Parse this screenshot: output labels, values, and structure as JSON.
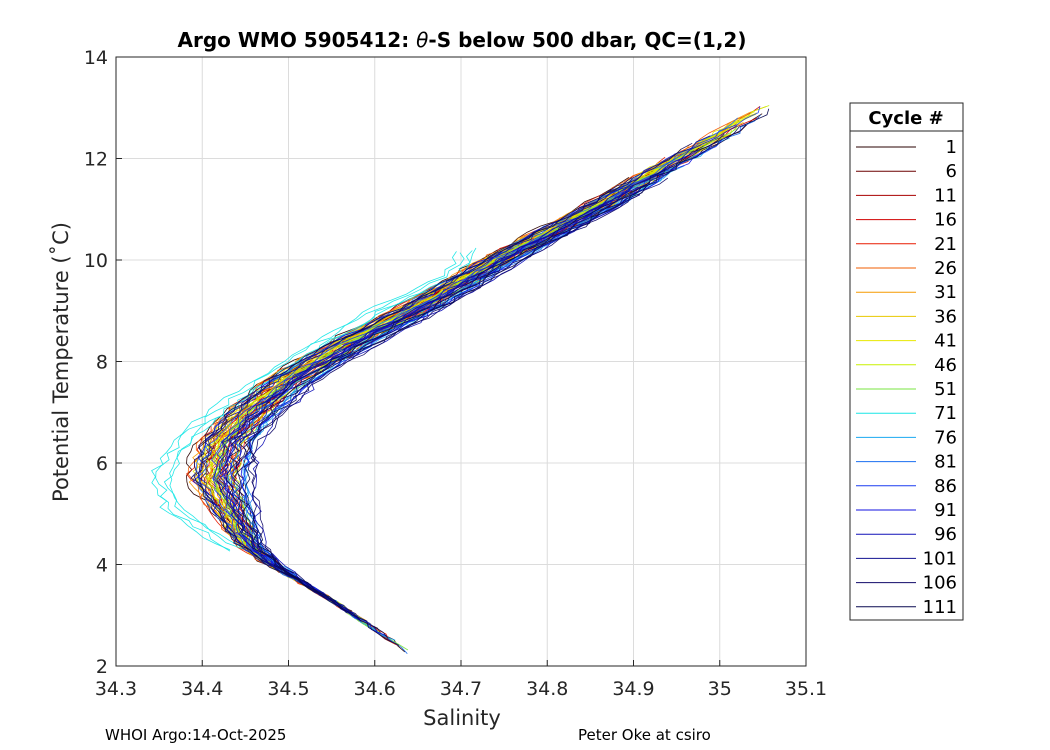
{
  "chart_data": {
    "type": "line",
    "title_prefix": "Argo WMO 5905412: ",
    "title_symbol": "θ",
    "title_suffix": "-S below 500 dbar,  QC=(1,2)",
    "xlabel": "Salinity",
    "ylabel": "Potential Temperature (˚C)",
    "xlim": [
      34.3,
      35.1
    ],
    "ylim": [
      2,
      14
    ],
    "xticks": [
      "34.3",
      "34.4",
      "34.5",
      "34.6",
      "34.7",
      "34.8",
      "34.9",
      "35",
      "35.1"
    ],
    "yticks": [
      "2",
      "4",
      "6",
      "8",
      "10",
      "12",
      "14"
    ],
    "grid": true,
    "legend_title": "Cycle #",
    "legend_position": "outside-right",
    "series": [
      {
        "name": "1",
        "color": "#2a0000"
      },
      {
        "name": "6",
        "color": "#6b0000"
      },
      {
        "name": "11",
        "color": "#a80000"
      },
      {
        "name": "16",
        "color": "#d10000"
      },
      {
        "name": "21",
        "color": "#e81a00"
      },
      {
        "name": "26",
        "color": "#f25c00"
      },
      {
        "name": "31",
        "color": "#f59a00"
      },
      {
        "name": "36",
        "color": "#e8c800"
      },
      {
        "name": "41",
        "color": "#e8e800"
      },
      {
        "name": "46",
        "color": "#c8f000"
      },
      {
        "name": "51",
        "color": "#7ae640"
      },
      {
        "name": "71",
        "color": "#19e6e6"
      },
      {
        "name": "76",
        "color": "#1aa8f0"
      },
      {
        "name": "81",
        "color": "#1a6ef0"
      },
      {
        "name": "86",
        "color": "#1a3cf0"
      },
      {
        "name": "91",
        "color": "#1010e0"
      },
      {
        "name": "96",
        "color": "#1010b8"
      },
      {
        "name": "101",
        "color": "#101090"
      },
      {
        "name": "106",
        "color": "#100a6a"
      },
      {
        "name": "111",
        "color": "#0a0a50"
      }
    ],
    "envelope": {
      "upper_branch": [
        [
          34.41,
          5.7
        ],
        [
          34.42,
          6.4
        ],
        [
          34.45,
          7.0
        ],
        [
          34.5,
          7.7
        ],
        [
          34.57,
          8.4
        ],
        [
          34.65,
          9.1
        ],
        [
          34.75,
          10.1
        ],
        [
          34.85,
          11.0
        ],
        [
          34.95,
          12.0
        ],
        [
          35.06,
          13.1
        ]
      ],
      "lower_branch": [
        [
          34.41,
          5.7
        ],
        [
          34.43,
          5.0
        ],
        [
          34.45,
          4.4
        ],
        [
          34.48,
          4.0
        ],
        [
          34.55,
          3.3
        ],
        [
          34.65,
          2.15
        ]
      ],
      "fresh_profile": [
        [
          34.44,
          4.25
        ],
        [
          34.37,
          5.0
        ],
        [
          34.35,
          5.7
        ],
        [
          34.38,
          6.5
        ],
        [
          34.44,
          7.3
        ],
        [
          34.52,
          8.2
        ],
        [
          34.6,
          9.0
        ],
        [
          34.69,
          9.7
        ],
        [
          34.71,
          10.25
        ]
      ]
    }
  },
  "footer": {
    "left": "WHOI Argo:14-Oct-2025",
    "right": "Peter Oke at csiro"
  }
}
